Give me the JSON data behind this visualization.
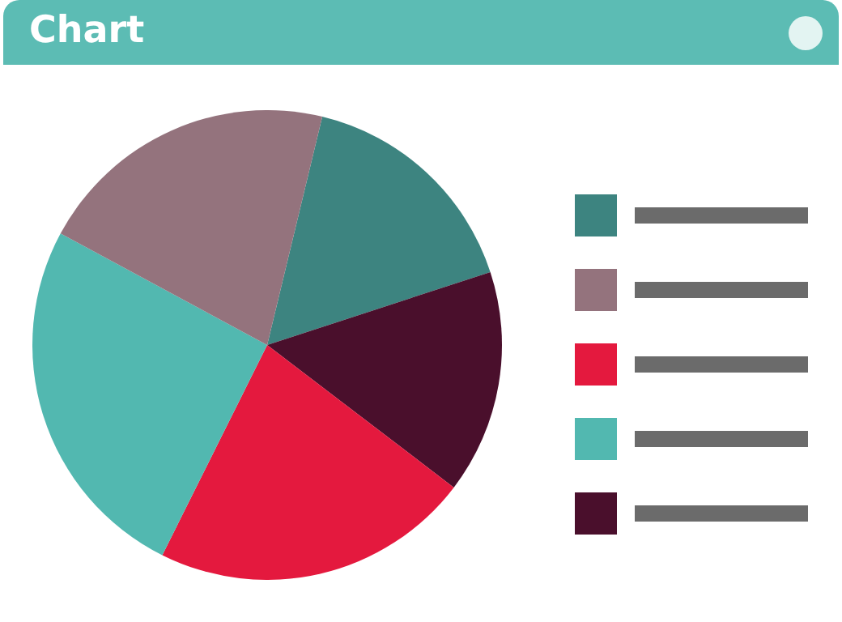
{
  "chart_data": {
    "type": "pie",
    "title": "Chart",
    "categories": [
      null,
      null,
      null,
      null,
      null
    ],
    "values": [
      16.2,
      15.4,
      22.0,
      25.5,
      20.9
    ],
    "colors": [
      "#3d8480",
      "#4a0f2c",
      "#e4193e",
      "#52b8b0",
      "#94737d"
    ]
  }
}
